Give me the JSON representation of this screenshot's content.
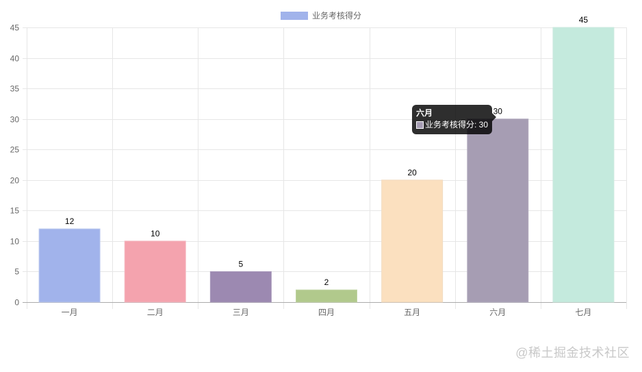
{
  "chart_data": {
    "type": "bar",
    "title": "",
    "xlabel": "",
    "ylabel": "",
    "categories": [
      "一月",
      "二月",
      "三月",
      "四月",
      "五月",
      "六月",
      "七月"
    ],
    "series": [
      {
        "name": "业务考核得分",
        "values": [
          12,
          10,
          5,
          2,
          20,
          30,
          45
        ],
        "colors": [
          "#a1b3eb",
          "#f4a3ae",
          "#9c89b1",
          "#b1c98c",
          "#fbe0bf",
          "#a69db3",
          "#c4eadd"
        ],
        "border_colors": [
          "#bcc9ee",
          "#f5b8c1",
          "#a999bb",
          "#c0d4a3",
          "#f1dcc2",
          "#b4adc1",
          "#cce9df"
        ]
      }
    ],
    "ylim": [
      0,
      45
    ],
    "yticks": [
      0,
      5,
      10,
      15,
      20,
      25,
      30,
      35,
      40,
      45
    ],
    "grid": true,
    "legend": {
      "position": "top",
      "entries": [
        "业务考核得分"
      ]
    },
    "data_labels": true,
    "annotations": []
  },
  "legend": {
    "label": "业务考核得分",
    "color": "#a1b3eb"
  },
  "tooltip": {
    "title": "六月",
    "label": "业务考核得分: 30",
    "swatch_color": "#a69db3"
  },
  "watermark": "@稀土掘金技术社区"
}
